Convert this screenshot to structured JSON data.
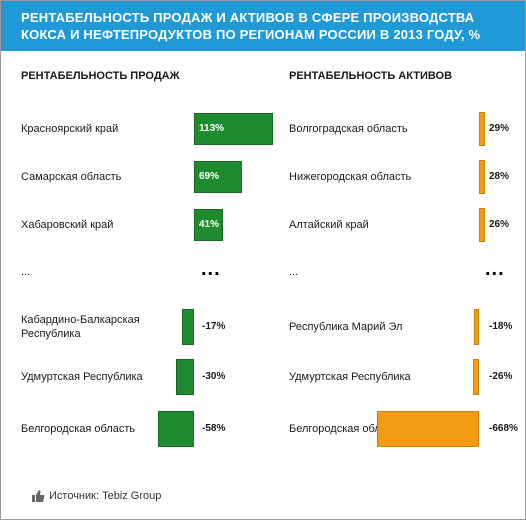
{
  "title": {
    "line1": "РЕНТАБЕЛЬНОСТЬ ПРОДАЖ И АКТИВОВ В СФЕРЕ ПРОИЗВОДСТВА",
    "line2": "КОКСА И НЕФТЕПРОДУКТОВ ПО РЕГИОНАМ РОССИИ В 2013 ГОДУ, %"
  },
  "source": "Источник: Tebiz Group",
  "ellipsis_label": "...",
  "ellipsis_dots": "...",
  "colors": {
    "header": "#1f9ad6",
    "sales": "#1e8c2e",
    "assets": "#f39c12"
  },
  "chart_data": [
    {
      "type": "bar",
      "title": "РЕНТАБЕЛЬНОСТЬ ПРОДАЖ",
      "unit": "%",
      "categories": [
        "Красноярский край",
        "Самарская область",
        "Хабаровский край",
        "...",
        "Кабардино-Балкарская Республика",
        "Удмуртская Республика",
        "Белгородская область"
      ],
      "values": [
        113,
        69,
        41,
        null,
        -17,
        -30,
        -58
      ],
      "labels": [
        "113%",
        "69%",
        "41%",
        "...",
        "-17%",
        "-30%",
        "-58%"
      ]
    },
    {
      "type": "bar",
      "title": "РЕНТАБЕЛЬНОСТЬ АКТИВОВ",
      "unit": "%",
      "categories": [
        "Волгоградская область",
        "Нижегородская область",
        "Алтайский край",
        "...",
        "Республика Марий Эл",
        "Удмуртская Республика",
        "Белгородская область"
      ],
      "values": [
        29,
        28,
        26,
        null,
        -18,
        -26,
        -668
      ],
      "labels": [
        "29%",
        "28%",
        "26%",
        "...",
        "-18%",
        "-26%",
        "-668%"
      ]
    }
  ]
}
